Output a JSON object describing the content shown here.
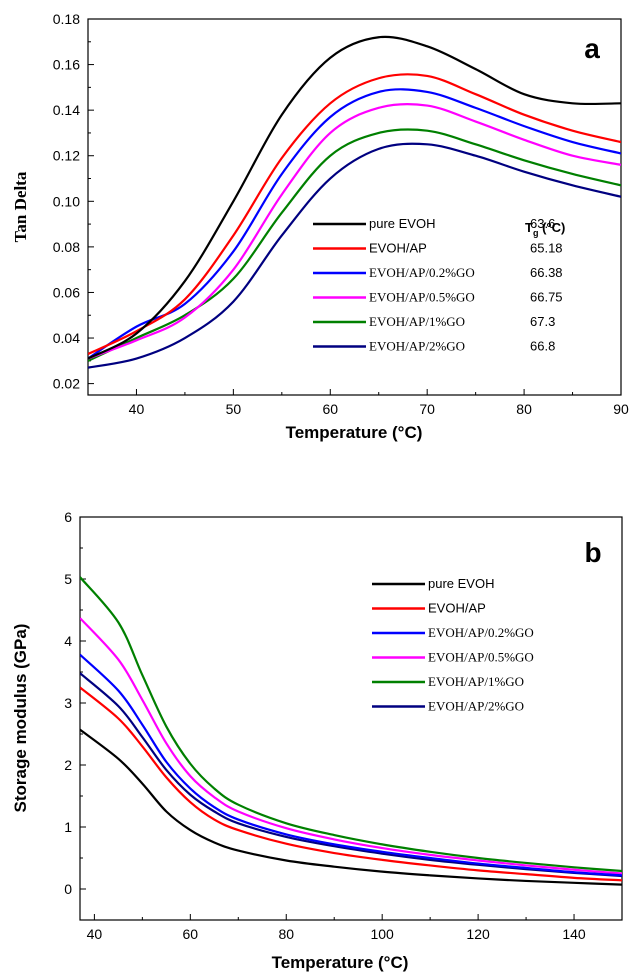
{
  "chart_data": [
    {
      "panel_label": "a",
      "type": "line",
      "xlabel": "Temperature (°C)",
      "ylabel": "Tan Delta",
      "xlim": [
        35,
        90
      ],
      "ylim": [
        0.015,
        0.18
      ],
      "xticks": [
        "40",
        "50",
        "60",
        "70",
        "80",
        "90"
      ],
      "yticks": [
        "0.02",
        "0.04",
        "0.06",
        "0.08",
        "0.10",
        "0.12",
        "0.14",
        "0.16",
        "0.18"
      ],
      "grid": false,
      "legend_position": "bottom-right",
      "table_header": "T",
      "table_header_sub": "g",
      "table_header_unit": " (°C)",
      "series": [
        {
          "name": "pure EVOH",
          "color": "#000000",
          "tg": "63.6",
          "x": [
            35,
            40,
            45,
            50,
            55,
            60,
            65,
            70,
            75,
            80,
            85,
            90
          ],
          "y": [
            0.031,
            0.042,
            0.065,
            0.1,
            0.138,
            0.163,
            0.172,
            0.168,
            0.158,
            0.147,
            0.143,
            0.143
          ]
        },
        {
          "name": "EVOH/AP",
          "color": "#ff0000",
          "tg": "65.18",
          "x": [
            35,
            40,
            45,
            50,
            55,
            60,
            65,
            70,
            75,
            80,
            85,
            90
          ],
          "y": [
            0.033,
            0.043,
            0.057,
            0.085,
            0.119,
            0.143,
            0.154,
            0.155,
            0.147,
            0.138,
            0.131,
            0.126
          ]
        },
        {
          "name": "EVOH/AP/0.2%GO",
          "color": "#0000ff",
          "tg": "66.38",
          "x": [
            35,
            40,
            45,
            50,
            55,
            60,
            65,
            70,
            75,
            80,
            85,
            90
          ],
          "y": [
            0.031,
            0.045,
            0.055,
            0.078,
            0.112,
            0.137,
            0.148,
            0.148,
            0.141,
            0.133,
            0.126,
            0.121
          ]
        },
        {
          "name": "EVOH/AP/0.5%GO",
          "color": "#ff00ff",
          "tg": "66.75",
          "x": [
            35,
            40,
            45,
            50,
            55,
            60,
            65,
            70,
            75,
            80,
            85,
            90
          ],
          "y": [
            0.031,
            0.039,
            0.049,
            0.07,
            0.103,
            0.13,
            0.141,
            0.142,
            0.135,
            0.127,
            0.12,
            0.116
          ]
        },
        {
          "name": "EVOH/AP/1%GO",
          "color": "#008000",
          "tg": "67.3",
          "x": [
            35,
            40,
            45,
            50,
            55,
            60,
            65,
            70,
            75,
            80,
            85,
            90
          ],
          "y": [
            0.03,
            0.04,
            0.05,
            0.066,
            0.095,
            0.12,
            0.13,
            0.131,
            0.125,
            0.118,
            0.112,
            0.107
          ]
        },
        {
          "name": "EVOH/AP/2%GO",
          "color": "#000080",
          "tg": "66.8",
          "x": [
            35,
            40,
            45,
            50,
            55,
            60,
            65,
            70,
            75,
            80,
            85,
            90
          ],
          "y": [
            0.027,
            0.031,
            0.04,
            0.056,
            0.085,
            0.11,
            0.123,
            0.125,
            0.12,
            0.113,
            0.107,
            0.102
          ]
        }
      ]
    },
    {
      "panel_label": "b",
      "type": "line",
      "xlabel": "Temperature (°C)",
      "ylabel": "Storage modulus (GPa)",
      "xlim": [
        37,
        150
      ],
      "ylim": [
        -0.5,
        6
      ],
      "xticks": [
        "40",
        "60",
        "80",
        "100",
        "120",
        "140"
      ],
      "yticks": [
        "0",
        "1",
        "2",
        "3",
        "4",
        "5",
        "6"
      ],
      "grid": false,
      "legend_position": "top-right",
      "series": [
        {
          "name": "pure EVOH",
          "color": "#000000",
          "x": [
            37,
            45,
            50,
            55,
            60,
            65,
            70,
            80,
            90,
            100,
            110,
            120,
            130,
            140,
            150
          ],
          "y": [
            2.57,
            2.1,
            1.7,
            1.25,
            0.95,
            0.75,
            0.62,
            0.46,
            0.36,
            0.28,
            0.22,
            0.17,
            0.13,
            0.1,
            0.07
          ]
        },
        {
          "name": "EVOH/AP",
          "color": "#ff0000",
          "x": [
            37,
            45,
            50,
            55,
            60,
            65,
            70,
            80,
            90,
            100,
            110,
            120,
            130,
            140,
            150
          ],
          "y": [
            3.25,
            2.75,
            2.3,
            1.8,
            1.4,
            1.12,
            0.95,
            0.73,
            0.58,
            0.47,
            0.38,
            0.3,
            0.24,
            0.18,
            0.14
          ]
        },
        {
          "name": "EVOH/AP/0.2%GO",
          "color": "#0000ff",
          "x": [
            37,
            45,
            50,
            55,
            60,
            65,
            70,
            80,
            90,
            100,
            110,
            120,
            130,
            140,
            150
          ],
          "y": [
            3.78,
            3.2,
            2.65,
            2.05,
            1.62,
            1.32,
            1.12,
            0.88,
            0.72,
            0.6,
            0.5,
            0.41,
            0.34,
            0.27,
            0.22
          ]
        },
        {
          "name": "EVOH/AP/0.5%GO",
          "color": "#ff00ff",
          "x": [
            37,
            45,
            50,
            55,
            60,
            65,
            70,
            80,
            90,
            100,
            110,
            120,
            130,
            140,
            150
          ],
          "y": [
            4.37,
            3.7,
            3.05,
            2.35,
            1.82,
            1.48,
            1.25,
            0.98,
            0.8,
            0.66,
            0.55,
            0.46,
            0.38,
            0.31,
            0.25
          ]
        },
        {
          "name": "EVOH/AP/1%GO",
          "color": "#008000",
          "x": [
            37,
            45,
            50,
            55,
            60,
            65,
            70,
            80,
            90,
            100,
            110,
            120,
            130,
            140,
            150
          ],
          "y": [
            5.03,
            4.3,
            3.45,
            2.62,
            2.02,
            1.62,
            1.36,
            1.06,
            0.87,
            0.72,
            0.6,
            0.5,
            0.42,
            0.35,
            0.29
          ]
        },
        {
          "name": "EVOH/AP/2%GO",
          "color": "#000080",
          "x": [
            37,
            45,
            50,
            55,
            60,
            65,
            70,
            80,
            90,
            100,
            110,
            120,
            130,
            140,
            150
          ],
          "y": [
            3.48,
            2.95,
            2.45,
            1.92,
            1.52,
            1.25,
            1.06,
            0.84,
            0.69,
            0.57,
            0.47,
            0.39,
            0.32,
            0.26,
            0.21
          ]
        }
      ]
    }
  ]
}
